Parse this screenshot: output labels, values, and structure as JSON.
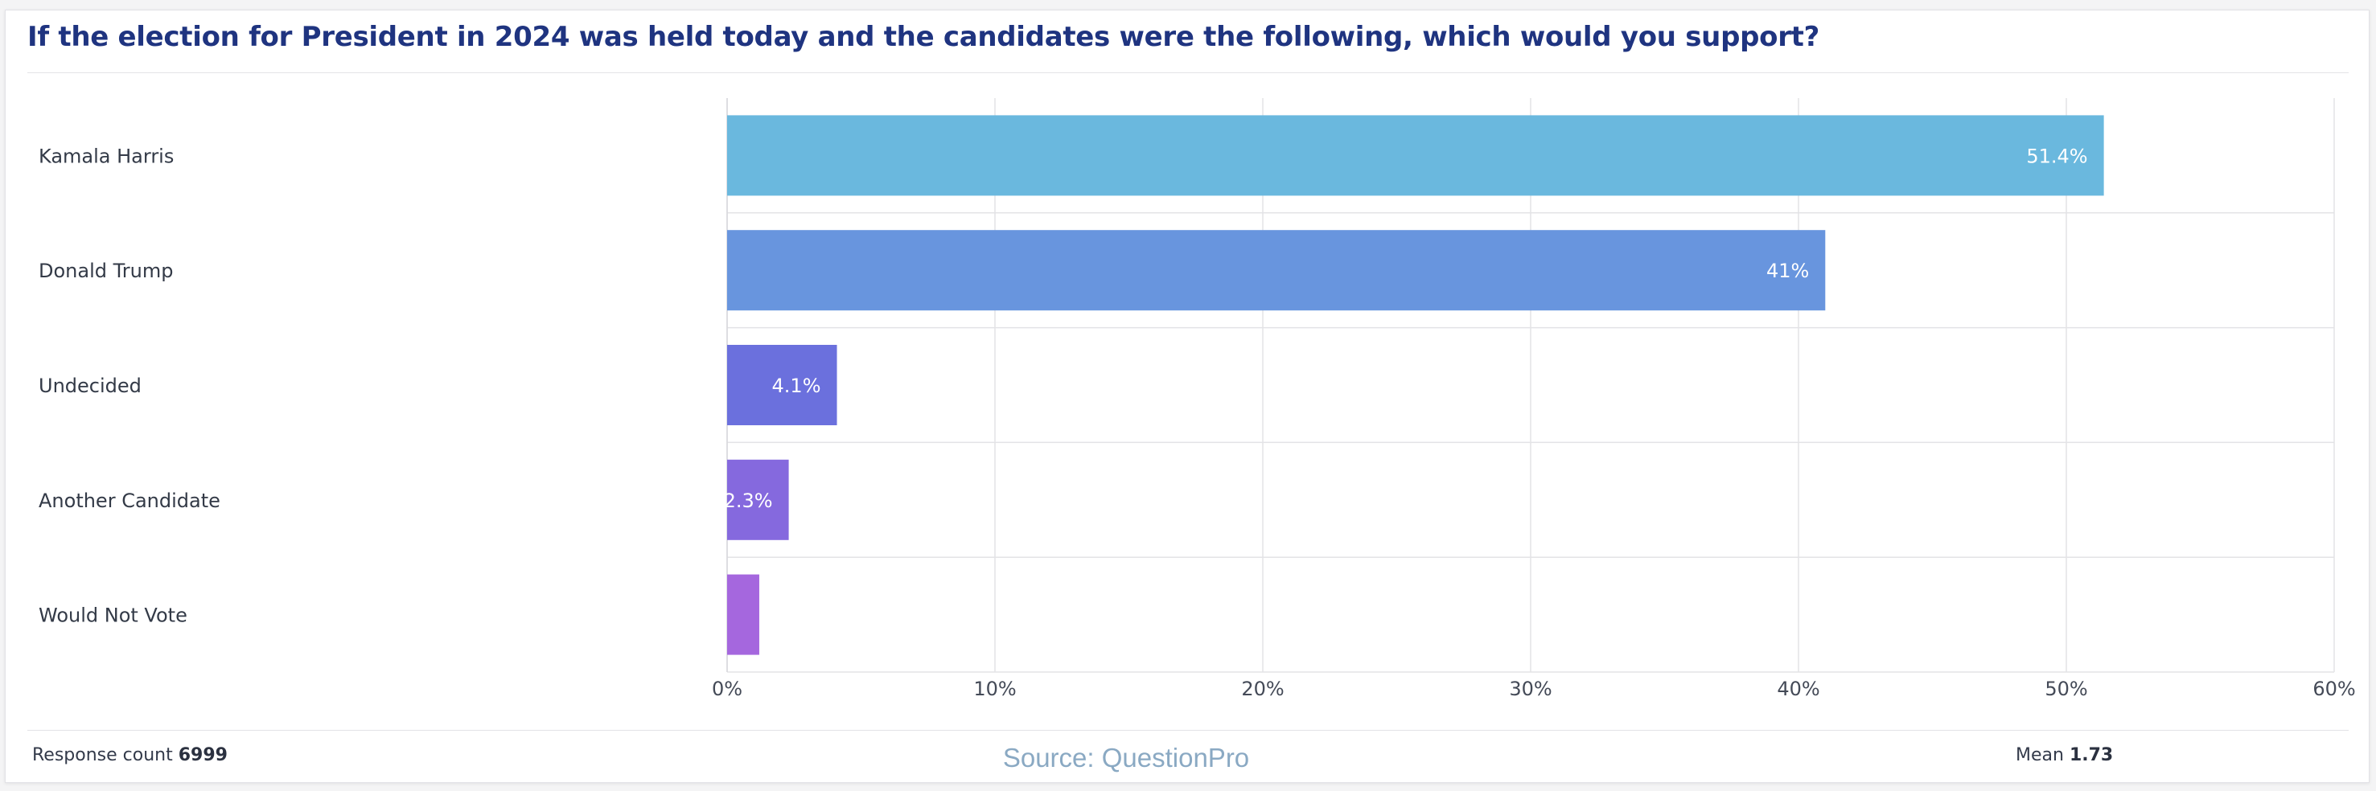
{
  "question": "If the election for President in 2024 was held today and the candidates were the following, which would you support?",
  "chart_data": {
    "type": "bar",
    "orientation": "horizontal",
    "categories": [
      "Kamala Harris",
      "Donald Trump",
      "Undecided",
      "Another Candidate",
      "Would Not Vote"
    ],
    "values": [
      51.4,
      41,
      4.1,
      2.3,
      1.2
    ],
    "data_labels": [
      "51.4%",
      "41%",
      "4.1%",
      "2.3%",
      ""
    ],
    "colors": [
      "#6ab8de",
      "#6895de",
      "#6b70dd",
      "#8569de",
      "#a567de"
    ],
    "xlim": [
      0,
      60
    ],
    "x_ticks": [
      "0%",
      "10%",
      "20%",
      "30%",
      "40%",
      "50%",
      "60%"
    ],
    "grid": true,
    "title": "",
    "xlabel": "",
    "ylabel": ""
  },
  "footer": {
    "response_count_label": "Response count",
    "response_count_value": "6999",
    "source": "Source: QuestionPro",
    "mean_label": "Mean",
    "mean_value": "1.73"
  }
}
